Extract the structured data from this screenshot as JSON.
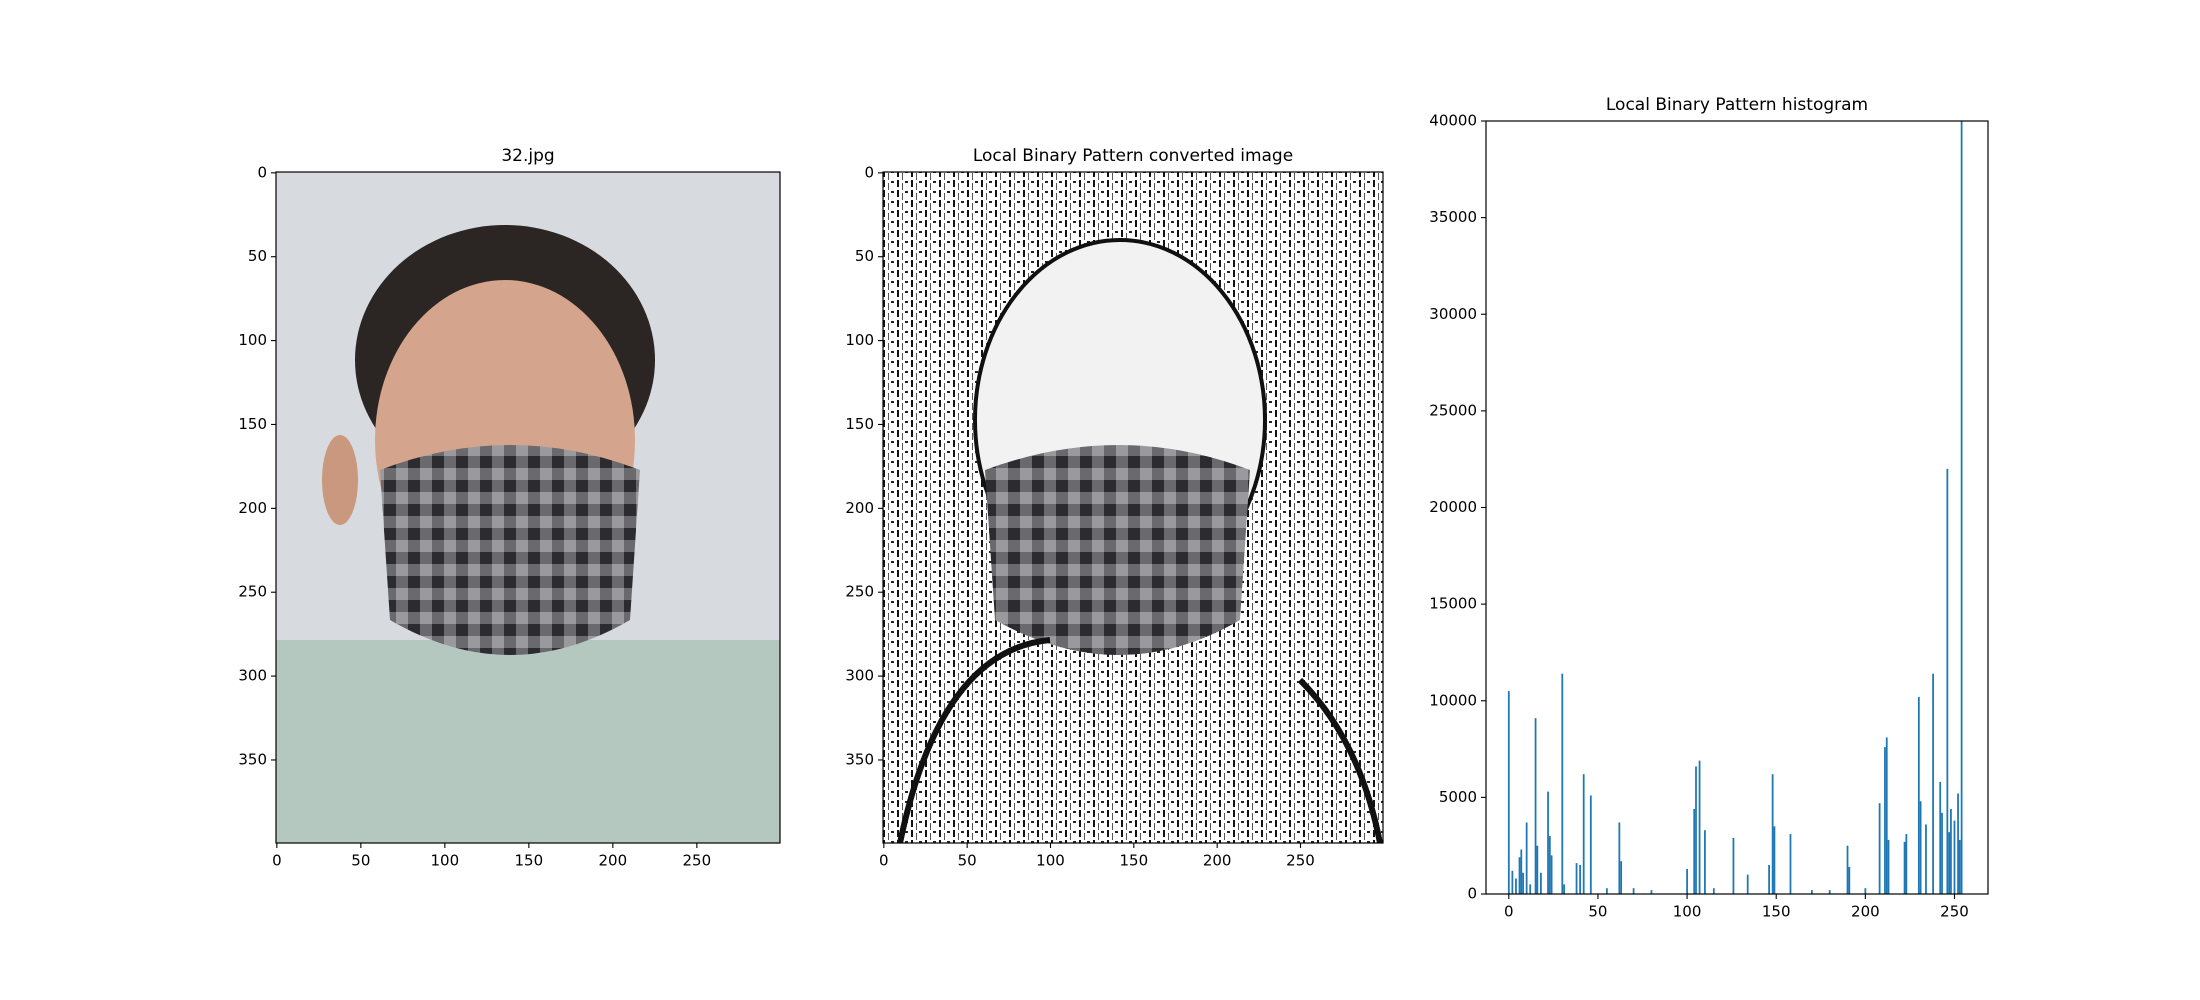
{
  "chart_data": [
    {
      "type": "image",
      "title": "32.jpg",
      "xlim": [
        -0.5,
        299.5
      ],
      "xticks": [
        0,
        50,
        100,
        150,
        200,
        250
      ],
      "ylim": [
        399.5,
        -0.5
      ],
      "yticks": [
        0,
        50,
        100,
        150,
        200,
        250,
        300,
        350
      ]
    },
    {
      "type": "image",
      "title": "Local Binary Pattern converted image",
      "xlim": [
        -0.5,
        299.5
      ],
      "xticks": [
        0,
        50,
        100,
        150,
        200,
        250
      ],
      "ylim": [
        399.5,
        -0.5
      ],
      "yticks": [
        0,
        50,
        100,
        150,
        200,
        250,
        300,
        350
      ]
    },
    {
      "type": "bar",
      "title": "Local Binary Pattern histogram",
      "color": "#1f77b4",
      "x": [
        0,
        2,
        4,
        6,
        7,
        8,
        10,
        12,
        15,
        16,
        18,
        22,
        23,
        24,
        30,
        31,
        38,
        40,
        42,
        46,
        55,
        62,
        63,
        70,
        80,
        100,
        104,
        105,
        107,
        110,
        115,
        126,
        134,
        146,
        148,
        149,
        158,
        170,
        180,
        190,
        191,
        200,
        208,
        211,
        212,
        213,
        222,
        223,
        230,
        231,
        234,
        238,
        242,
        243,
        246,
        247,
        248,
        250,
        252,
        253,
        254
      ],
      "values": [
        10500,
        1200,
        800,
        1900,
        2300,
        1100,
        3700,
        500,
        9100,
        2500,
        1100,
        5300,
        3000,
        2000,
        11400,
        500,
        1600,
        1500,
        6200,
        5100,
        300,
        3700,
        1700,
        300,
        200,
        1300,
        4400,
        6600,
        6900,
        3300,
        300,
        2900,
        1000,
        1500,
        6200,
        3500,
        3100,
        200,
        200,
        2500,
        1400,
        300,
        4700,
        7600,
        8100,
        2800,
        2700,
        3100,
        10200,
        4800,
        3600,
        11400,
        5800,
        4200,
        22000,
        3200,
        4400,
        3800,
        5200,
        2800,
        40000
      ],
      "xlim": [
        -12.8,
        268.8
      ],
      "xticks": [
        0,
        50,
        100,
        150,
        200,
        250
      ],
      "ylim": [
        0,
        40000
      ],
      "yticks": [
        0,
        5000,
        10000,
        15000,
        20000,
        25000,
        30000,
        35000,
        40000
      ]
    }
  ]
}
